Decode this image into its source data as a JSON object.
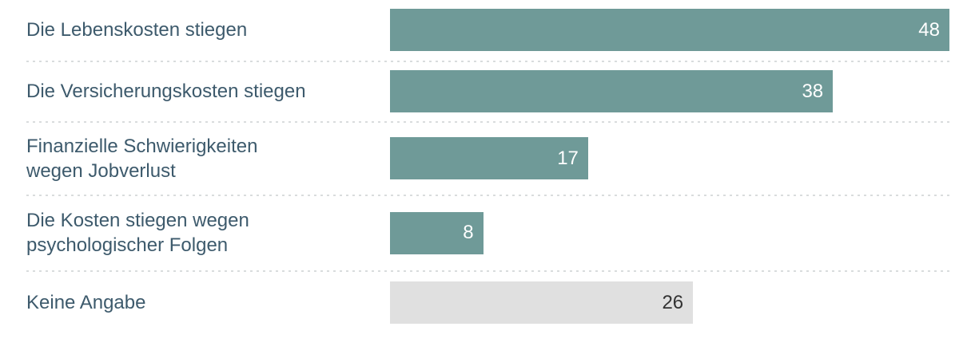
{
  "chart_data": {
    "type": "bar",
    "orientation": "horizontal",
    "title": "",
    "xlabel": "",
    "ylabel": "",
    "xlim": [
      0,
      48
    ],
    "grid": false,
    "legend": false,
    "categories": [
      "Die Lebenskosten stiegen",
      "Die Versicherungskosten stiegen",
      "Finanzielle Schwierigkeiten wegen Jobverlust",
      "Die Kosten stiegen wegen psychologischer Folgen",
      "Keine Angabe"
    ],
    "values": [
      48,
      38,
      17,
      8,
      26
    ],
    "colors": {
      "accent": "#6f9a98",
      "neutral": "#e0e0e0"
    },
    "value_text_colors": {
      "accent": "#ffffff",
      "neutral": "#333333"
    },
    "label_color": "#3d5a6c",
    "separator_color": "#d9dcdd",
    "bars": [
      {
        "label": "Die Lebenskosten stiegen",
        "value": 48,
        "color": "accent"
      },
      {
        "label": "Die Versicherungskosten stiegen",
        "value": 38,
        "color": "accent"
      },
      {
        "label": "Finanzielle Schwierigkeiten\nwegen Jobverlust",
        "value": 17,
        "color": "accent"
      },
      {
        "label": "Die Kosten stiegen wegen\npsychologischer Folgen",
        "value": 8,
        "color": "accent"
      },
      {
        "label": "Keine Angabe",
        "value": 26,
        "color": "neutral"
      }
    ]
  }
}
